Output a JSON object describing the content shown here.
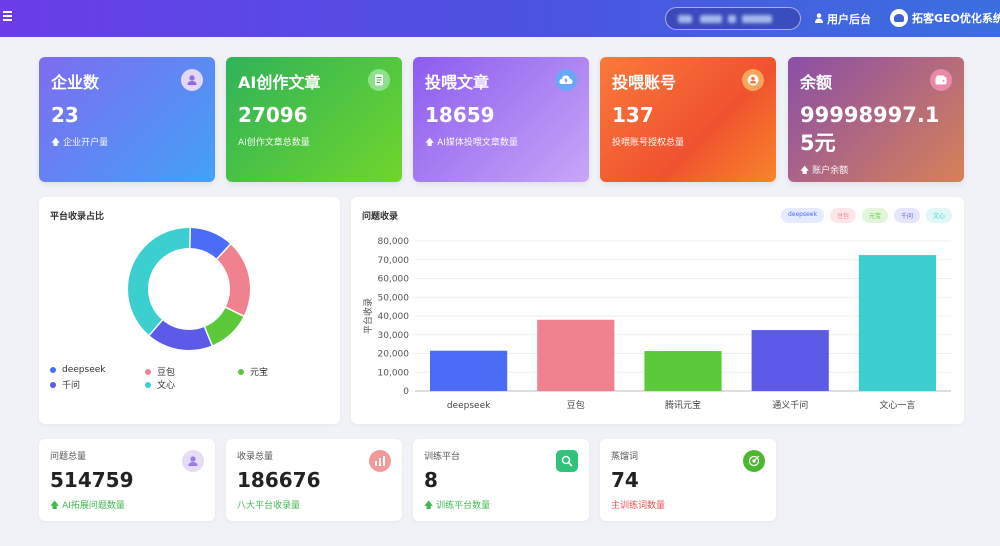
{
  "topbar": {
    "menu_icon": "hamburger-menu-icon",
    "user_backend_label": "用户后台",
    "system_name": "拓客GEO优化系统"
  },
  "stat_cards": [
    {
      "title": "企业数",
      "value": "23",
      "sub": "企业开户量",
      "icon": "user-icon",
      "sub_icon": "arrow-up-icon"
    },
    {
      "title": "AI创作文章",
      "value": "27096",
      "sub": "AI创作文章总数量",
      "icon": "document-icon"
    },
    {
      "title": "投喂文章",
      "value": "18659",
      "sub": "AI媒体投喂文章数量",
      "icon": "cloud-upload-icon",
      "sub_icon": "arrow-up-icon"
    },
    {
      "title": "投喂账号",
      "value": "137",
      "sub": "投喂账号授权总量",
      "icon": "account-icon"
    },
    {
      "title": "余额",
      "value": "99998997.15元",
      "sub": "账户余额",
      "icon": "wallet-icon",
      "sub_icon": "arrow-up-icon"
    }
  ],
  "pie_panel": {
    "title": "平台收录占比",
    "legend": [
      {
        "label": "deepseek",
        "color": "#4a6cf7"
      },
      {
        "label": "豆包",
        "color": "#f0828f"
      },
      {
        "label": "元宝",
        "color": "#5cc93a"
      },
      {
        "label": "千问",
        "color": "#5b5be8"
      },
      {
        "label": "文心",
        "color": "#3ccfcf"
      }
    ]
  },
  "bar_panel": {
    "title": "问题收录",
    "chips": [
      {
        "label": "deepseek",
        "bg": "#e4eaff",
        "fg": "#4a6cf7"
      },
      {
        "label": "豆包",
        "bg": "#fde6ea",
        "fg": "#f0828f"
      },
      {
        "label": "元宝",
        "bg": "#e2f6dc",
        "fg": "#5cc93a"
      },
      {
        "label": "千问",
        "bg": "#e5e5fb",
        "fg": "#5b5be8"
      },
      {
        "label": "文心",
        "bg": "#dff7f7",
        "fg": "#3ccfcf"
      }
    ]
  },
  "chart_data": [
    {
      "type": "pie",
      "title": "平台收录占比",
      "donut": true,
      "categories": [
        "deepseek",
        "豆包",
        "元宝",
        "千问",
        "文心"
      ],
      "values": [
        21500,
        38000,
        21300,
        32500,
        72500
      ],
      "colors": [
        "#4a6cf7",
        "#f0828f",
        "#5cc93a",
        "#5b5be8",
        "#3ccfcf"
      ],
      "legend_placement": "bottom"
    },
    {
      "type": "bar",
      "title": "问题收录",
      "categories": [
        "deepseek",
        "豆包",
        "腾讯元宝",
        "通义千问",
        "文心一言"
      ],
      "values": [
        21500,
        38000,
        21300,
        32500,
        72500
      ],
      "colors": [
        "#4a6cf7",
        "#f0828f",
        "#5cc93a",
        "#5b5be8",
        "#3ccfcf"
      ],
      "ylabel": "平台收录",
      "ylim": [
        0,
        80000
      ],
      "yticks": [
        "0",
        "10,000",
        "20,000",
        "30,000",
        "40,000",
        "50,000",
        "60,000",
        "70,000",
        "80,000"
      ],
      "grid": true
    }
  ],
  "mini_cards": [
    {
      "title": "问题总量",
      "value": "514759",
      "sub": "AI拓展问题数量",
      "sub_color": "#3fb950",
      "icon": "question-icon",
      "icon_bg": "#e6dcf8",
      "sub_icon": "arrow-up-icon"
    },
    {
      "title": "收录总量",
      "value": "186676",
      "sub": "八大平台收录量",
      "sub_color": "#3fb950",
      "icon": "bar-chart-icon",
      "icon_bg": "#f29a9a"
    },
    {
      "title": "训练平台",
      "value": "8",
      "sub": "训练平台数量",
      "sub_color": "#3fb950",
      "icon": "search-icon",
      "icon_bg": "#2fc47a",
      "sub_icon": "arrow-up-icon"
    },
    {
      "title": "蒸馏词",
      "value": "74",
      "sub": "主训练词数量",
      "sub_color": "#f05050",
      "icon": "target-icon",
      "icon_bg": "#4cb830"
    }
  ]
}
